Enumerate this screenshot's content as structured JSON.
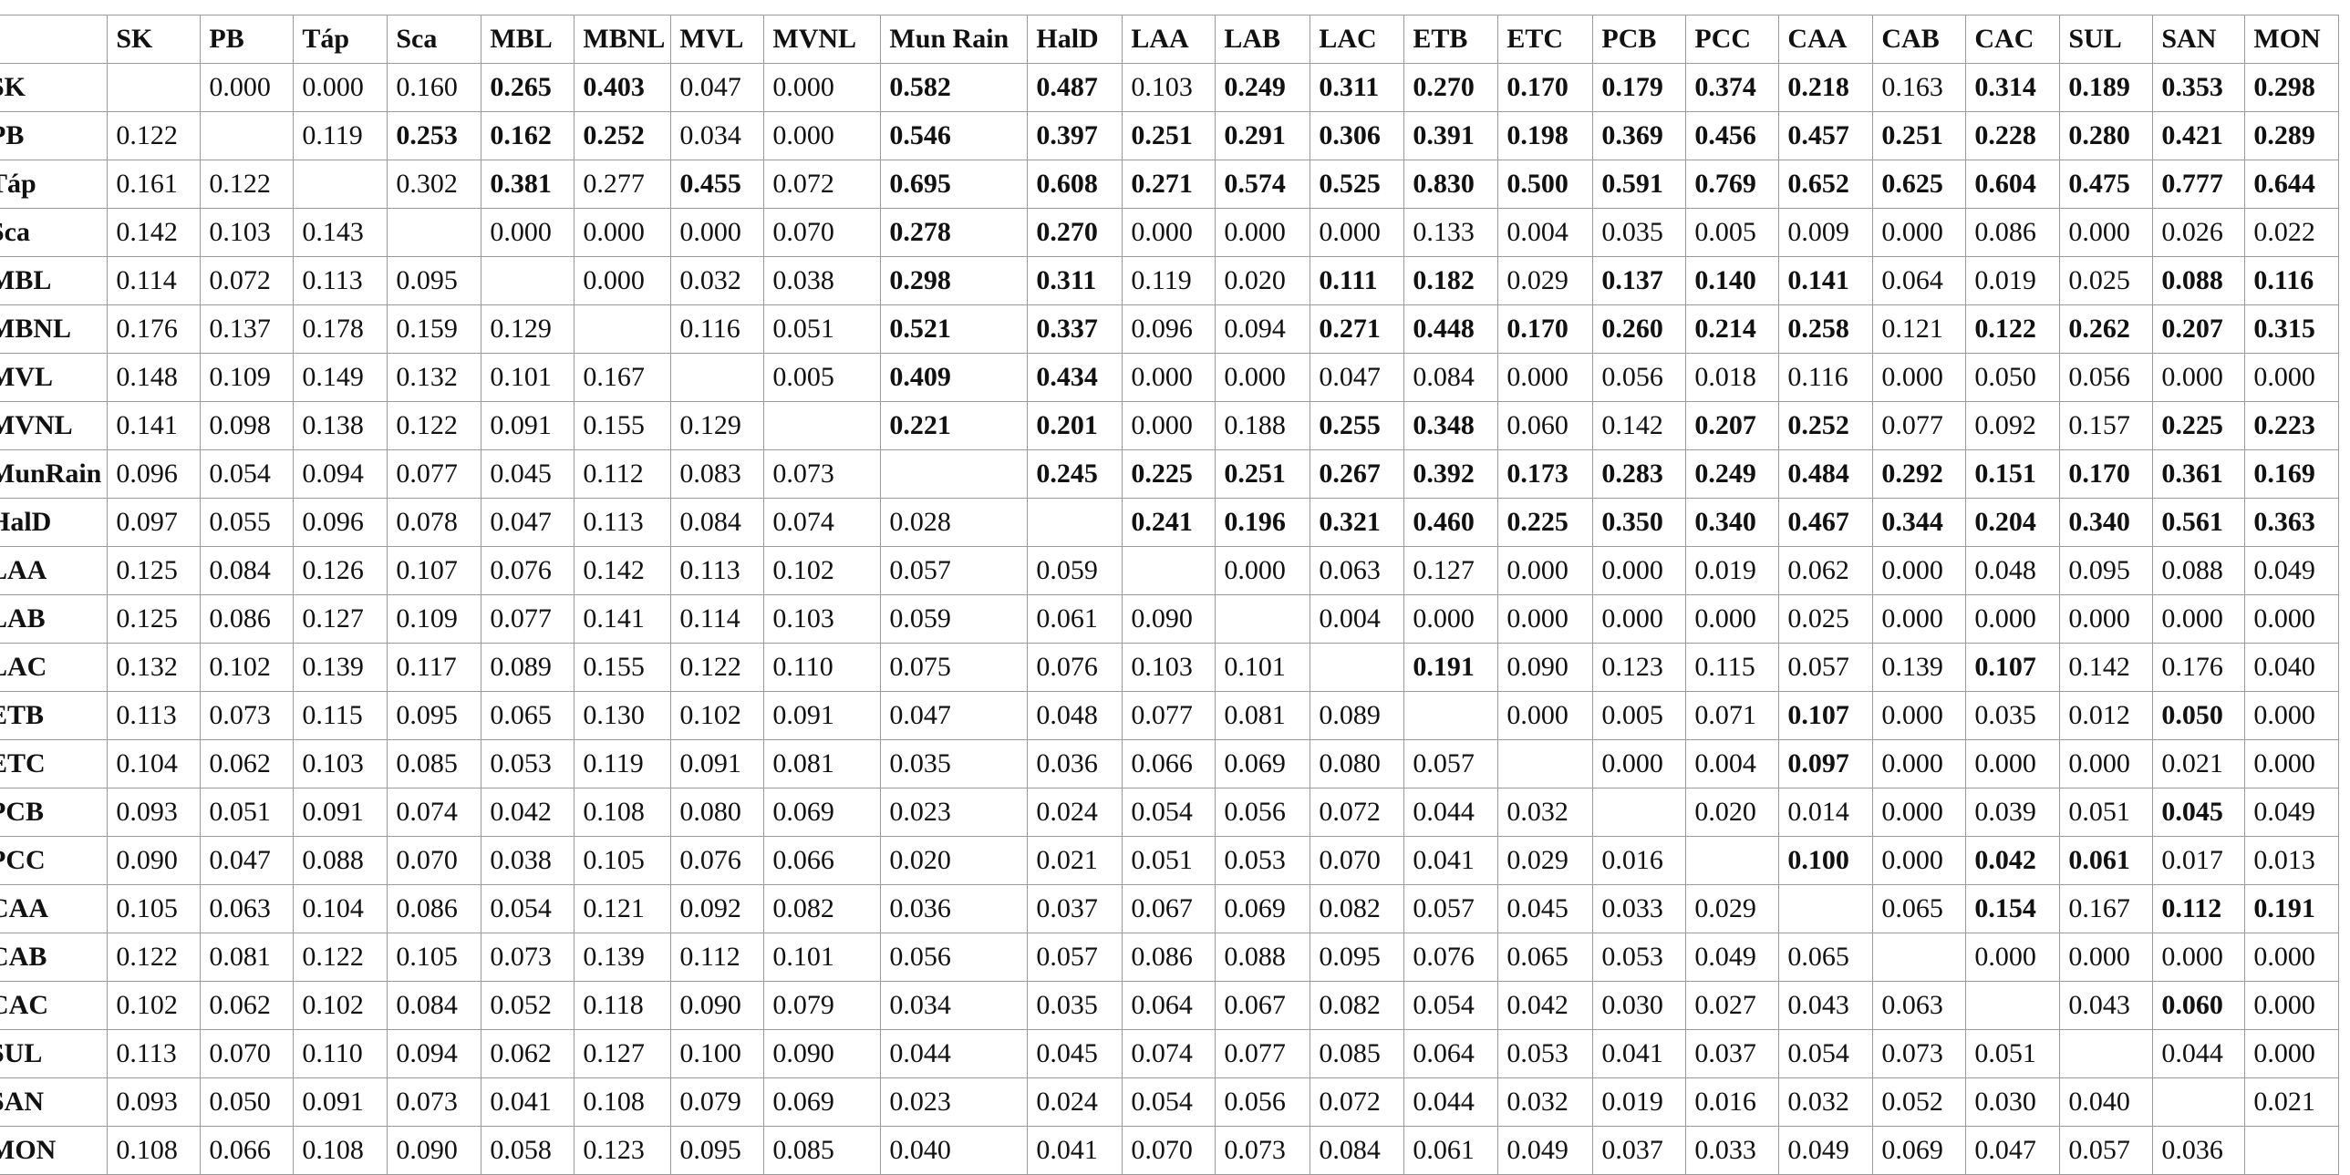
{
  "table": {
    "columns": [
      "SK",
      "PB",
      "Táp",
      "Sca",
      "MBL",
      "MBNL",
      "MVL",
      "MVNL",
      "Mun Rain",
      "HalD",
      "LAA",
      "LAB",
      "LAC",
      "ETB",
      "ETC",
      "PCB",
      "PCC",
      "CAA",
      "CAB",
      "CAC",
      "SUL",
      "SAN",
      "MON"
    ],
    "rows": [
      {
        "label": "SK",
        "cells": [
          "",
          "0.000",
          "0.000",
          "0.160",
          "0.265",
          "0.403",
          "0.047",
          "0.000",
          "0.582",
          "0.487",
          "0.103",
          "0.249",
          "0.311",
          "0.270",
          "0.170",
          "0.179",
          "0.374",
          "0.218",
          "0.163",
          "0.314",
          "0.189",
          "0.353",
          "0.298"
        ],
        "bold": [
          4,
          5,
          8,
          9,
          11,
          12,
          13,
          14,
          15,
          16,
          17,
          19,
          20,
          21,
          22
        ]
      },
      {
        "label": "PB",
        "cells": [
          "0.122",
          "",
          "0.119",
          "0.253",
          "0.162",
          "0.252",
          "0.034",
          "0.000",
          "0.546",
          "0.397",
          "0.251",
          "0.291",
          "0.306",
          "0.391",
          "0.198",
          "0.369",
          "0.456",
          "0.457",
          "0.251",
          "0.228",
          "0.280",
          "0.421",
          "0.289"
        ],
        "bold": [
          3,
          4,
          5,
          8,
          9,
          10,
          11,
          12,
          13,
          14,
          15,
          16,
          17,
          18,
          19,
          20,
          21,
          22
        ]
      },
      {
        "label": "Táp",
        "cells": [
          "0.161",
          "0.122",
          "",
          "0.302",
          "0.381",
          "0.277",
          "0.455",
          "0.072",
          "0.695",
          "0.608",
          "0.271",
          "0.574",
          "0.525",
          "0.830",
          "0.500",
          "0.591",
          "0.769",
          "0.652",
          "0.625",
          "0.604",
          "0.475",
          "0.777",
          "0.644"
        ],
        "bold": [
          4,
          6,
          8,
          9,
          10,
          11,
          12,
          13,
          14,
          15,
          16,
          17,
          18,
          19,
          20,
          21,
          22
        ]
      },
      {
        "label": "Sca",
        "cells": [
          "0.142",
          "0.103",
          "0.143",
          "",
          "0.000",
          "0.000",
          "0.000",
          "0.070",
          "0.278",
          "0.270",
          "0.000",
          "0.000",
          "0.000",
          "0.133",
          "0.004",
          "0.035",
          "0.005",
          "0.009",
          "0.000",
          "0.086",
          "0.000",
          "0.026",
          "0.022"
        ],
        "bold": [
          8,
          9
        ]
      },
      {
        "label": "MBL",
        "cells": [
          "0.114",
          "0.072",
          "0.113",
          "0.095",
          "",
          "0.000",
          "0.032",
          "0.038",
          "0.298",
          "0.311",
          "0.119",
          "0.020",
          "0.111",
          "0.182",
          "0.029",
          "0.137",
          "0.140",
          "0.141",
          "0.064",
          "0.019",
          "0.025",
          "0.088",
          "0.116"
        ],
        "bold": [
          8,
          9,
          12,
          13,
          15,
          16,
          17,
          21,
          22
        ]
      },
      {
        "label": "MBNL",
        "cells": [
          "0.176",
          "0.137",
          "0.178",
          "0.159",
          "0.129",
          "",
          "0.116",
          "0.051",
          "0.521",
          "0.337",
          "0.096",
          "0.094",
          "0.271",
          "0.448",
          "0.170",
          "0.260",
          "0.214",
          "0.258",
          "0.121",
          "0.122",
          "0.262",
          "0.207",
          "0.315"
        ],
        "bold": [
          8,
          9,
          12,
          13,
          14,
          15,
          16,
          17,
          19,
          20,
          21,
          22
        ]
      },
      {
        "label": "MVL",
        "cells": [
          "0.148",
          "0.109",
          "0.149",
          "0.132",
          "0.101",
          "0.167",
          "",
          "0.005",
          "0.409",
          "0.434",
          "0.000",
          "0.000",
          "0.047",
          "0.084",
          "0.000",
          "0.056",
          "0.018",
          "0.116",
          "0.000",
          "0.050",
          "0.056",
          "0.000",
          "0.000"
        ],
        "bold": [
          8,
          9
        ]
      },
      {
        "label": "MVNL",
        "cells": [
          "0.141",
          "0.098",
          "0.138",
          "0.122",
          "0.091",
          "0.155",
          "0.129",
          "",
          "0.221",
          "0.201",
          "0.000",
          "0.188",
          "0.255",
          "0.348",
          "0.060",
          "0.142",
          "0.207",
          "0.252",
          "0.077",
          "0.092",
          "0.157",
          "0.225",
          "0.223"
        ],
        "bold": [
          8,
          9,
          12,
          13,
          16,
          17,
          21,
          22
        ]
      },
      {
        "label": "MunRain",
        "cells": [
          "0.096",
          "0.054",
          "0.094",
          "0.077",
          "0.045",
          "0.112",
          "0.083",
          "0.073",
          "",
          "0.245",
          "0.225",
          "0.251",
          "0.267",
          "0.392",
          "0.173",
          "0.283",
          "0.249",
          "0.484",
          "0.292",
          "0.151",
          "0.170",
          "0.361",
          "0.169"
        ],
        "bold": [
          9,
          10,
          11,
          12,
          13,
          14,
          15,
          16,
          17,
          18,
          19,
          20,
          21,
          22
        ]
      },
      {
        "label": "HalD",
        "cells": [
          "0.097",
          "0.055",
          "0.096",
          "0.078",
          "0.047",
          "0.113",
          "0.084",
          "0.074",
          "0.028",
          "",
          "0.241",
          "0.196",
          "0.321",
          "0.460",
          "0.225",
          "0.350",
          "0.340",
          "0.467",
          "0.344",
          "0.204",
          "0.340",
          "0.561",
          "0.363"
        ],
        "bold": [
          10,
          11,
          12,
          13,
          14,
          15,
          16,
          17,
          18,
          19,
          20,
          21,
          22
        ]
      },
      {
        "label": "LAA",
        "cells": [
          "0.125",
          "0.084",
          "0.126",
          "0.107",
          "0.076",
          "0.142",
          "0.113",
          "0.102",
          "0.057",
          "0.059",
          "",
          "0.000",
          "0.063",
          "0.127",
          "0.000",
          "0.000",
          "0.019",
          "0.062",
          "0.000",
          "0.048",
          "0.095",
          "0.088",
          "0.049"
        ],
        "bold": []
      },
      {
        "label": "LAB",
        "cells": [
          "0.125",
          "0.086",
          "0.127",
          "0.109",
          "0.077",
          "0.141",
          "0.114",
          "0.103",
          "0.059",
          "0.061",
          "0.090",
          "",
          "0.004",
          "0.000",
          "0.000",
          "0.000",
          "0.000",
          "0.025",
          "0.000",
          "0.000",
          "0.000",
          "0.000",
          "0.000"
        ],
        "bold": []
      },
      {
        "label": "LAC",
        "cells": [
          "0.132",
          "0.102",
          "0.139",
          "0.117",
          "0.089",
          "0.155",
          "0.122",
          "0.110",
          "0.075",
          "0.076",
          "0.103",
          "0.101",
          "",
          "0.191",
          "0.090",
          "0.123",
          "0.115",
          "0.057",
          "0.139",
          "0.107",
          "0.142",
          "0.176",
          "0.040"
        ],
        "bold": [
          13,
          19
        ]
      },
      {
        "label": "ETB",
        "cells": [
          "0.113",
          "0.073",
          "0.115",
          "0.095",
          "0.065",
          "0.130",
          "0.102",
          "0.091",
          "0.047",
          "0.048",
          "0.077",
          "0.081",
          "0.089",
          "",
          "0.000",
          "0.005",
          "0.071",
          "0.107",
          "0.000",
          "0.035",
          "0.012",
          "0.050",
          "0.000"
        ],
        "bold": [
          17,
          21
        ]
      },
      {
        "label": "ETC",
        "cells": [
          "0.104",
          "0.062",
          "0.103",
          "0.085",
          "0.053",
          "0.119",
          "0.091",
          "0.081",
          "0.035",
          "0.036",
          "0.066",
          "0.069",
          "0.080",
          "0.057",
          "",
          "0.000",
          "0.004",
          "0.097",
          "0.000",
          "0.000",
          "0.000",
          "0.021",
          "0.000"
        ],
        "bold": [
          17
        ]
      },
      {
        "label": "PCB",
        "cells": [
          "0.093",
          "0.051",
          "0.091",
          "0.074",
          "0.042",
          "0.108",
          "0.080",
          "0.069",
          "0.023",
          "0.024",
          "0.054",
          "0.056",
          "0.072",
          "0.044",
          "0.032",
          "",
          "0.020",
          "0.014",
          "0.000",
          "0.039",
          "0.051",
          "0.045",
          "0.049"
        ],
        "bold": [
          21
        ]
      },
      {
        "label": "PCC",
        "cells": [
          "0.090",
          "0.047",
          "0.088",
          "0.070",
          "0.038",
          "0.105",
          "0.076",
          "0.066",
          "0.020",
          "0.021",
          "0.051",
          "0.053",
          "0.070",
          "0.041",
          "0.029",
          "0.016",
          "",
          "0.100",
          "0.000",
          "0.042",
          "0.061",
          "0.017",
          "0.013"
        ],
        "bold": [
          17,
          19,
          20
        ]
      },
      {
        "label": "CAA",
        "cells": [
          "0.105",
          "0.063",
          "0.104",
          "0.086",
          "0.054",
          "0.121",
          "0.092",
          "0.082",
          "0.036",
          "0.037",
          "0.067",
          "0.069",
          "0.082",
          "0.057",
          "0.045",
          "0.033",
          "0.029",
          "",
          "0.065",
          "0.154",
          "0.167",
          "0.112",
          "0.191"
        ],
        "bold": [
          19,
          21,
          22
        ]
      },
      {
        "label": "CAB",
        "cells": [
          "0.122",
          "0.081",
          "0.122",
          "0.105",
          "0.073",
          "0.139",
          "0.112",
          "0.101",
          "0.056",
          "0.057",
          "0.086",
          "0.088",
          "0.095",
          "0.076",
          "0.065",
          "0.053",
          "0.049",
          "0.065",
          "",
          "0.000",
          "0.000",
          "0.000",
          "0.000"
        ],
        "bold": []
      },
      {
        "label": "CAC",
        "cells": [
          "0.102",
          "0.062",
          "0.102",
          "0.084",
          "0.052",
          "0.118",
          "0.090",
          "0.079",
          "0.034",
          "0.035",
          "0.064",
          "0.067",
          "0.082",
          "0.054",
          "0.042",
          "0.030",
          "0.027",
          "0.043",
          "0.063",
          "",
          "0.043",
          "0.060",
          "0.000"
        ],
        "bold": [
          21
        ]
      },
      {
        "label": "SUL",
        "cells": [
          "0.113",
          "0.070",
          "0.110",
          "0.094",
          "0.062",
          "0.127",
          "0.100",
          "0.090",
          "0.044",
          "0.045",
          "0.074",
          "0.077",
          "0.085",
          "0.064",
          "0.053",
          "0.041",
          "0.037",
          "0.054",
          "0.073",
          "0.051",
          "",
          "0.044",
          "0.000"
        ],
        "bold": []
      },
      {
        "label": "SAN",
        "cells": [
          "0.093",
          "0.050",
          "0.091",
          "0.073",
          "0.041",
          "0.108",
          "0.079",
          "0.069",
          "0.023",
          "0.024",
          "0.054",
          "0.056",
          "0.072",
          "0.044",
          "0.032",
          "0.019",
          "0.016",
          "0.032",
          "0.052",
          "0.030",
          "0.040",
          "",
          "0.021"
        ],
        "bold": []
      },
      {
        "label": "MON",
        "cells": [
          "0.108",
          "0.066",
          "0.108",
          "0.090",
          "0.058",
          "0.123",
          "0.095",
          "0.085",
          "0.040",
          "0.041",
          "0.070",
          "0.073",
          "0.084",
          "0.061",
          "0.049",
          "0.037",
          "0.033",
          "0.049",
          "0.069",
          "0.047",
          "0.057",
          "0.036",
          ""
        ],
        "bold": []
      }
    ]
  }
}
